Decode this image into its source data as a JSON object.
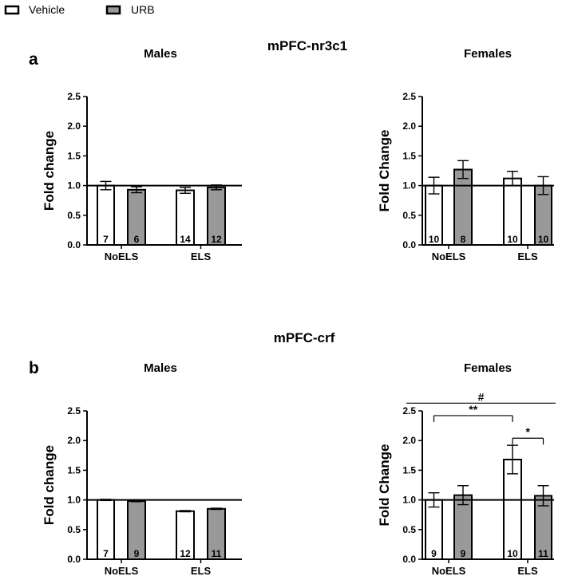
{
  "legend": [
    {
      "label": "Vehicle",
      "color": "#ffffff"
    },
    {
      "label": "URB",
      "color": "#999999"
    }
  ],
  "colors": {
    "vehicle": "#ffffff",
    "urb": "#999999",
    "axis": "#000000"
  },
  "sections": [
    {
      "letter": "a",
      "title": "mPFC-nr3c1"
    },
    {
      "letter": "b",
      "title": "mPFC-crf"
    }
  ],
  "chart_data": [
    {
      "type": "bar",
      "section": "a",
      "title": "Males",
      "ylabel": "Fold change",
      "categories": [
        "NoELS",
        "ELS"
      ],
      "ylim": [
        0,
        2.5
      ],
      "yticks": [
        "0.0",
        "0.5",
        "1.0",
        "1.5",
        "2.0",
        "2.5"
      ],
      "reference_line": 1.0,
      "series": [
        {
          "name": "Vehicle",
          "values": [
            1.0,
            0.92
          ],
          "errors": [
            0.07,
            0.05
          ],
          "n": [
            "7",
            "14"
          ]
        },
        {
          "name": "URB",
          "values": [
            0.93,
            0.97
          ],
          "errors": [
            0.05,
            0.04
          ],
          "n": [
            "6",
            "12"
          ]
        }
      ],
      "annotations": []
    },
    {
      "type": "bar",
      "section": "a",
      "title": "Females",
      "ylabel": "Fold  Change",
      "categories": [
        "NoELS",
        "ELS"
      ],
      "ylim": [
        0,
        2.5
      ],
      "yticks": [
        "0.0",
        "0.5",
        "1.0",
        "1.5",
        "2.0",
        "2.5"
      ],
      "reference_line": 1.0,
      "series": [
        {
          "name": "Vehicle",
          "values": [
            1.0,
            1.12
          ],
          "errors": [
            0.14,
            0.12
          ],
          "n": [
            "10",
            "10"
          ]
        },
        {
          "name": "URB",
          "values": [
            1.27,
            1.0
          ],
          "errors": [
            0.15,
            0.15
          ],
          "n": [
            "8",
            "10"
          ]
        }
      ],
      "annotations": []
    },
    {
      "type": "bar",
      "section": "b",
      "title": "Males",
      "ylabel": "Fold change",
      "categories": [
        "NoELS",
        "ELS"
      ],
      "ylim": [
        0,
        2.5
      ],
      "yticks": [
        "0.0",
        "0.5",
        "1.0",
        "1.5",
        "2.0",
        "2.5"
      ],
      "reference_line": 1.0,
      "series": [
        {
          "name": "Vehicle",
          "values": [
            1.0,
            0.81
          ],
          "errors": [
            0.01,
            0.01
          ],
          "n": [
            "7",
            "12"
          ]
        },
        {
          "name": "URB",
          "values": [
            0.98,
            0.85
          ],
          "errors": [
            0.01,
            0.01
          ],
          "n": [
            "9",
            "11"
          ]
        }
      ],
      "annotations": []
    },
    {
      "type": "bar",
      "section": "b",
      "title": "Females",
      "ylabel": "Fold  Change",
      "categories": [
        "NoELS",
        "ELS"
      ],
      "ylim": [
        0,
        2.5
      ],
      "yticks": [
        "0.0",
        "0.5",
        "1.0",
        "1.5",
        "2.0",
        "2.5"
      ],
      "reference_line": 1.0,
      "series": [
        {
          "name": "Vehicle",
          "values": [
            1.0,
            1.68
          ],
          "errors": [
            0.12,
            0.24
          ],
          "n": [
            "9",
            "10"
          ]
        },
        {
          "name": "URB",
          "values": [
            1.08,
            1.07
          ],
          "errors": [
            0.16,
            0.17
          ],
          "n": [
            "9",
            "11"
          ]
        }
      ],
      "annotations": [
        {
          "label": "#",
          "from": [
            0,
            0
          ],
          "to": [
            1,
            1
          ],
          "y": 2.63,
          "ticks": false
        },
        {
          "label": "**",
          "from": [
            0,
            0
          ],
          "to": [
            1,
            0
          ],
          "y": 2.42,
          "ticks": true
        },
        {
          "label": "*",
          "from": [
            1,
            0
          ],
          "to": [
            1,
            1
          ],
          "y": 2.04,
          "ticks": true
        }
      ]
    }
  ]
}
